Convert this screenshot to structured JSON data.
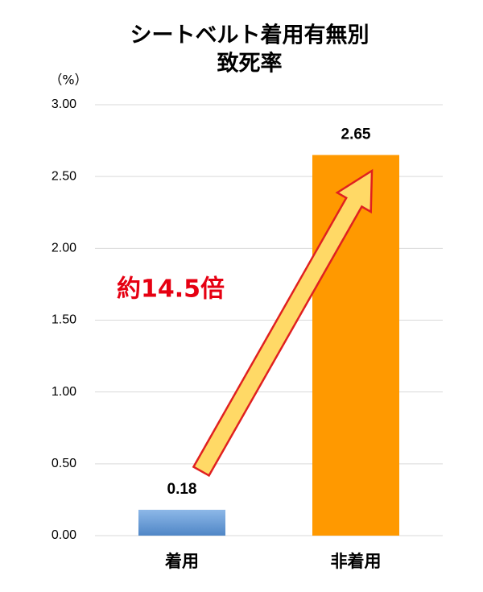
{
  "chart_data": {
    "type": "bar",
    "title": "シートベルト着用有無別",
    "subtitle": "致死率",
    "y_label": "（%）",
    "annotation": "約14.5倍",
    "categories": [
      "着用",
      "非着用"
    ],
    "values": [
      0.18,
      2.65
    ],
    "colors": [
      "#6a9fd8",
      "#ff9900"
    ],
    "ylim": [
      0,
      3
    ],
    "yticks": [
      {
        "value": 0,
        "label": "0.00"
      },
      {
        "value": 0.5,
        "label": "0.50"
      },
      {
        "value": 1,
        "label": "1.00"
      },
      {
        "value": 1.5,
        "label": "1.50"
      },
      {
        "value": 2,
        "label": "2.00"
      },
      {
        "value": 2.5,
        "label": "2.50"
      },
      {
        "value": 3,
        "label": "3.00"
      }
    ],
    "grid": true
  }
}
